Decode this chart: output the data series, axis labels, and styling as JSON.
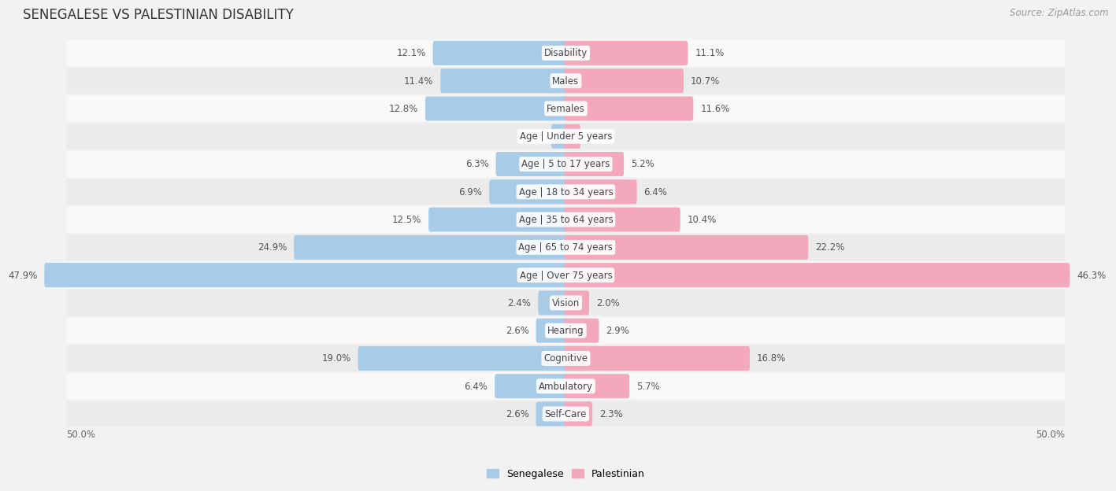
{
  "title": "SENEGALESE VS PALESTINIAN DISABILITY",
  "source": "Source: ZipAtlas.com",
  "categories": [
    "Disability",
    "Males",
    "Females",
    "Age | Under 5 years",
    "Age | 5 to 17 years",
    "Age | 18 to 34 years",
    "Age | 35 to 64 years",
    "Age | 65 to 74 years",
    "Age | Over 75 years",
    "Vision",
    "Hearing",
    "Cognitive",
    "Ambulatory",
    "Self-Care"
  ],
  "senegalese": [
    12.1,
    11.4,
    12.8,
    1.2,
    6.3,
    6.9,
    12.5,
    24.9,
    47.9,
    2.4,
    2.6,
    19.0,
    6.4,
    2.6
  ],
  "palestinian": [
    11.1,
    10.7,
    11.6,
    1.2,
    5.2,
    6.4,
    10.4,
    22.2,
    46.3,
    2.0,
    2.9,
    16.8,
    5.7,
    2.3
  ],
  "senegalese_color": "#A8CCE8",
  "palestinian_color": "#F4A8BC",
  "background_color": "#f2f2f2",
  "row_light": "#f9f9f9",
  "row_dark": "#ebebeb",
  "max_val": 50.0,
  "legend_senegalese": "Senegalese",
  "legend_palestinian": "Palestinian",
  "title_fontsize": 12,
  "source_fontsize": 8.5,
  "bar_height": 0.58,
  "label_fontsize": 8.5,
  "value_fontsize": 8.5
}
